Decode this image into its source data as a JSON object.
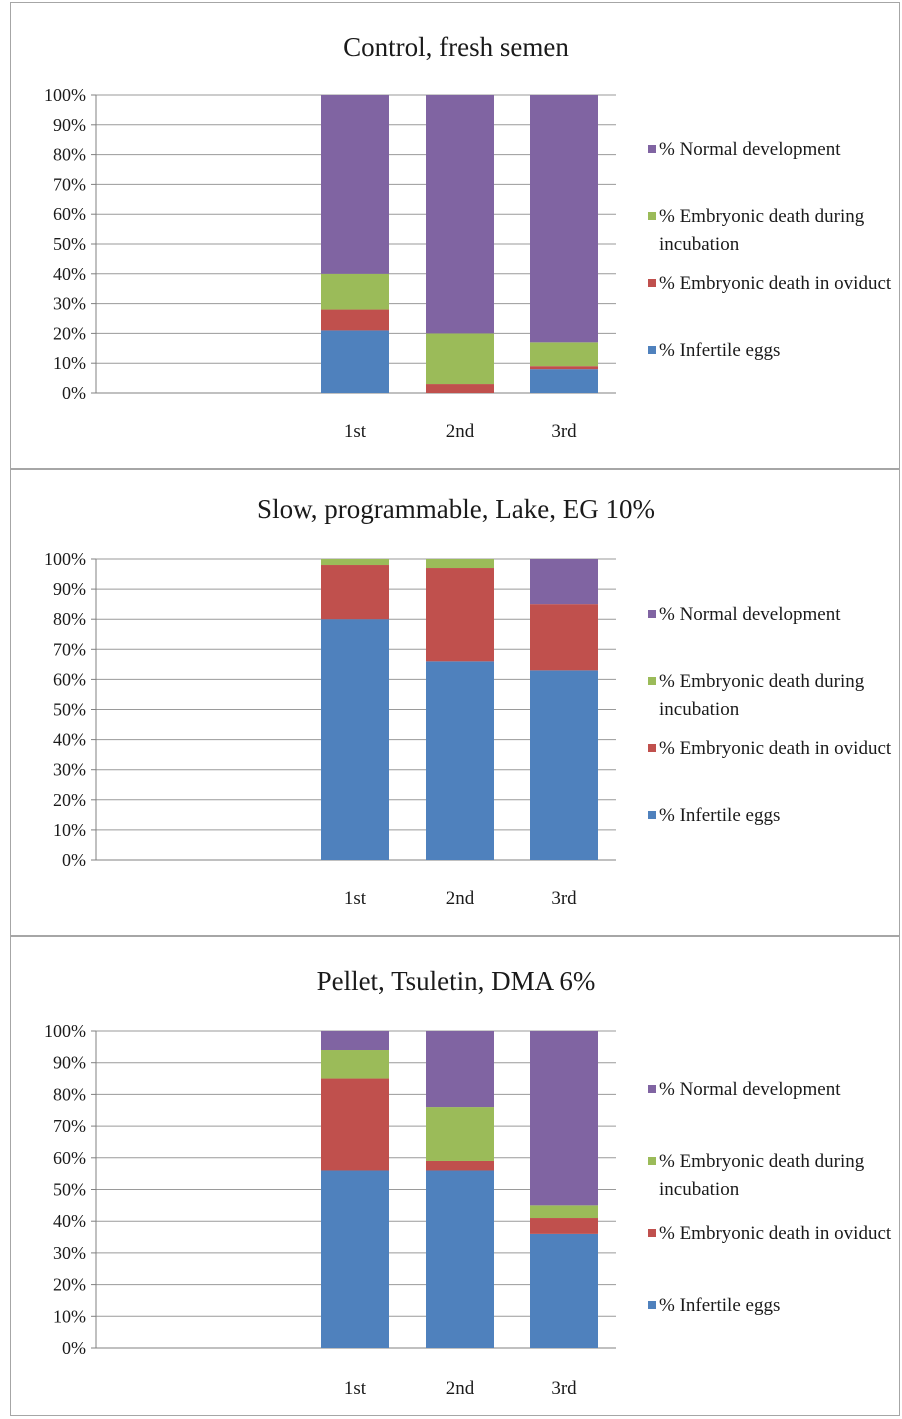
{
  "chart_data": [
    {
      "type": "bar",
      "stacked": true,
      "percent_stacked": true,
      "title": "Control, fresh semen",
      "categories": [
        "1st",
        "2nd",
        "3rd"
      ],
      "ylim": [
        0,
        100
      ],
      "yticks": [
        "0%",
        "10%",
        "20%",
        "30%",
        "40%",
        "50%",
        "60%",
        "70%",
        "80%",
        "90%",
        "100%"
      ],
      "grid": true,
      "legend_position": "right",
      "series": [
        {
          "name": "% Infertile eggs",
          "color": "#4f81bd",
          "values": [
            21,
            0,
            8
          ]
        },
        {
          "name": "% Embryonic death in oviduct",
          "color": "#c0504d",
          "values": [
            7,
            3,
            1
          ]
        },
        {
          "name": "% Embryonic death during incubation",
          "color": "#9bbb59",
          "values": [
            12,
            17,
            8
          ]
        },
        {
          "name": "% Normal development",
          "color": "#8064a2",
          "values": [
            60,
            80,
            83
          ]
        }
      ],
      "legend": [
        {
          "line1": "% Normal development",
          "line2": ""
        },
        {
          "line1": "% Embryonic death during",
          "line2": "incubation"
        },
        {
          "line1": "% Embryonic death in oviduct",
          "line2": ""
        },
        {
          "line1": "% Infertile eggs",
          "line2": ""
        }
      ]
    },
    {
      "type": "bar",
      "stacked": true,
      "percent_stacked": true,
      "title": "Slow, programmable, Lake, EG 10%",
      "categories": [
        "1st",
        "2nd",
        "3rd"
      ],
      "ylim": [
        0,
        100
      ],
      "yticks": [
        "0%",
        "10%",
        "20%",
        "30%",
        "40%",
        "50%",
        "60%",
        "70%",
        "80%",
        "90%",
        "100%"
      ],
      "grid": true,
      "legend_position": "right",
      "series": [
        {
          "name": "% Infertile eggs",
          "color": "#4f81bd",
          "values": [
            80,
            66,
            63
          ]
        },
        {
          "name": "% Embryonic death in oviduct",
          "color": "#c0504d",
          "values": [
            18,
            31,
            22
          ]
        },
        {
          "name": "% Embryonic death during incubation",
          "color": "#9bbb59",
          "values": [
            2,
            3,
            0
          ]
        },
        {
          "name": "% Normal development",
          "color": "#8064a2",
          "values": [
            0,
            0,
            15
          ]
        }
      ],
      "legend": [
        {
          "line1": "% Normal development",
          "line2": ""
        },
        {
          "line1": "% Embryonic death during",
          "line2": "incubation"
        },
        {
          "line1": "% Embryonic death in oviduct",
          "line2": ""
        },
        {
          "line1": "% Infertile eggs",
          "line2": ""
        }
      ]
    },
    {
      "type": "bar",
      "stacked": true,
      "percent_stacked": true,
      "title": "Pellet, Tsuletin, DMA 6%",
      "categories": [
        "1st",
        "2nd",
        "3rd"
      ],
      "ylim": [
        0,
        100
      ],
      "yticks": [
        "0%",
        "10%",
        "20%",
        "30%",
        "40%",
        "50%",
        "60%",
        "70%",
        "80%",
        "90%",
        "100%"
      ],
      "grid": true,
      "legend_position": "right",
      "series": [
        {
          "name": "% Infertile eggs",
          "color": "#4f81bd",
          "values": [
            56,
            56,
            36
          ]
        },
        {
          "name": "% Embryonic death in oviduct",
          "color": "#c0504d",
          "values": [
            29,
            3,
            5
          ]
        },
        {
          "name": "% Embryonic death during incubation",
          "color": "#9bbb59",
          "values": [
            9,
            17,
            4
          ]
        },
        {
          "name": "% Normal development",
          "color": "#8064a2",
          "values": [
            6,
            24,
            55
          ]
        }
      ],
      "legend": [
        {
          "line1": "% Normal development",
          "line2": ""
        },
        {
          "line1": "% Embryonic death during",
          "line2": "incubation"
        },
        {
          "line1": "% Embryonic death in oviduct",
          "line2": ""
        },
        {
          "line1": "% Infertile eggs",
          "line2": ""
        }
      ]
    }
  ]
}
